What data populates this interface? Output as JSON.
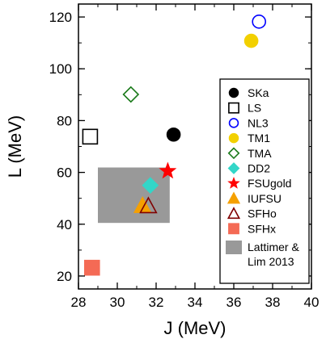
{
  "chart_data": {
    "type": "scatter",
    "title": "",
    "xlabel": "J (MeV)",
    "ylabel": "L (MeV)",
    "xlim": [
      28,
      40
    ],
    "ylim": [
      15,
      125
    ],
    "xticks": [
      28,
      30,
      32,
      34,
      36,
      38,
      40
    ],
    "yticks": [
      20,
      40,
      60,
      80,
      100,
      120
    ],
    "grid": false,
    "legend_position": "right",
    "series": [
      {
        "name": "SKa",
        "marker": "circle",
        "filled": true,
        "color": "#000000",
        "points": [
          {
            "x": 32.9,
            "y": 74.6
          }
        ]
      },
      {
        "name": "LS",
        "marker": "square",
        "filled": false,
        "color": "#000000",
        "points": [
          {
            "x": 28.6,
            "y": 73.8
          }
        ]
      },
      {
        "name": "NL3",
        "marker": "circle",
        "filled": false,
        "color": "#0000ff",
        "points": [
          {
            "x": 37.3,
            "y": 118.2
          }
        ]
      },
      {
        "name": "TM1",
        "marker": "circle",
        "filled": true,
        "color": "#f2d000",
        "points": [
          {
            "x": 36.9,
            "y": 110.8
          }
        ]
      },
      {
        "name": "TMA",
        "marker": "diamond",
        "filled": false,
        "color": "#1a7a1a",
        "points": [
          {
            "x": 30.7,
            "y": 90.1
          }
        ]
      },
      {
        "name": "DD2",
        "marker": "diamond",
        "filled": true,
        "color": "#33d6c8",
        "points": [
          {
            "x": 31.7,
            "y": 55.0
          }
        ]
      },
      {
        "name": "FSUgold",
        "marker": "star",
        "filled": true,
        "color": "#ff0000",
        "points": [
          {
            "x": 32.6,
            "y": 60.5
          }
        ]
      },
      {
        "name": "IUFSU",
        "marker": "triangle",
        "filled": true,
        "color": "#f5a000",
        "points": [
          {
            "x": 31.3,
            "y": 47.2
          }
        ]
      },
      {
        "name": "SFHo",
        "marker": "triangle",
        "filled": false,
        "color": "#800000",
        "points": [
          {
            "x": 31.6,
            "y": 47.1
          }
        ]
      },
      {
        "name": "SFHx",
        "marker": "square",
        "filled": true,
        "color": "#f46a55",
        "points": [
          {
            "x": 28.7,
            "y": 23.2
          }
        ]
      }
    ],
    "regions": [
      {
        "name": "Lattimer & Lim 2013",
        "color": "#999999",
        "x": [
          29.0,
          32.7
        ],
        "y": [
          40.5,
          61.9
        ]
      }
    ],
    "legend": {
      "entries": [
        "SKa",
        "LS",
        "NL3",
        "TM1",
        "TMA",
        "DD2",
        "FSUgold",
        "IUFSU",
        "SFHo",
        "SFHx"
      ],
      "region_label_lines": [
        "Lattimer &",
        "Lim 2013"
      ]
    }
  }
}
